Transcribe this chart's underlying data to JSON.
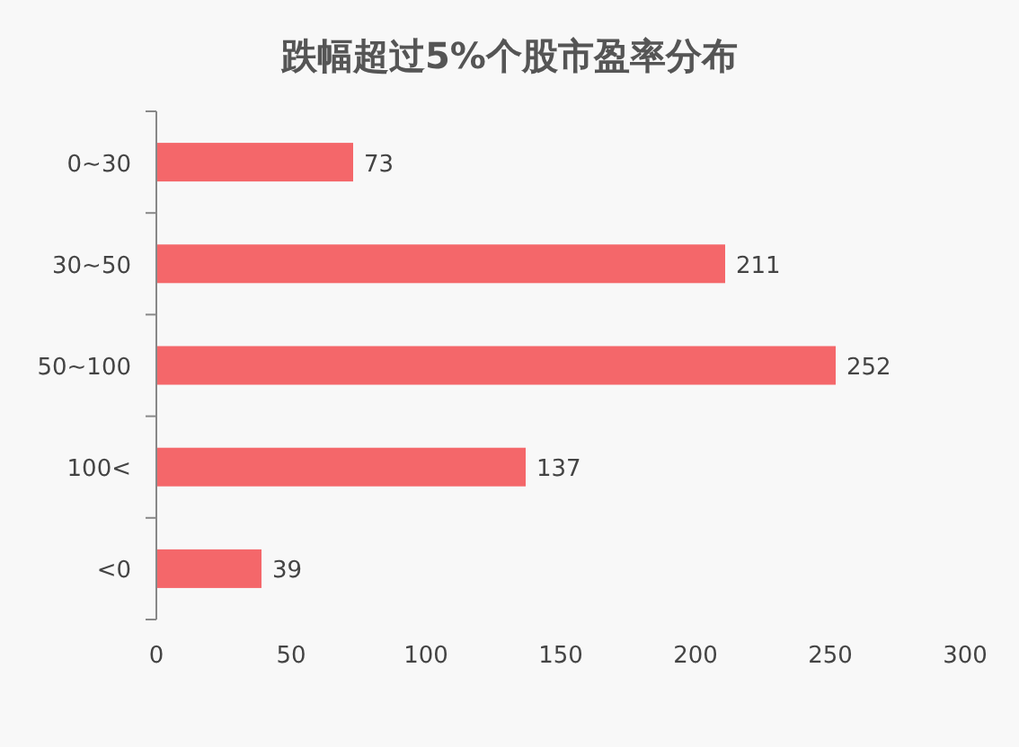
{
  "chart_data": {
    "type": "bar",
    "title": "跌幅超过5%个股市盈率分布",
    "orientation": "horizontal",
    "categories": [
      "0~30",
      "30~50",
      "50~100",
      "100<",
      "<0"
    ],
    "values": [
      73,
      211,
      252,
      137,
      39
    ],
    "color": "#f4676a",
    "xlim": [
      0,
      300
    ],
    "xticks": [
      0,
      50,
      100,
      150,
      200,
      250,
      300
    ],
    "data_labels": true,
    "grid": false
  }
}
